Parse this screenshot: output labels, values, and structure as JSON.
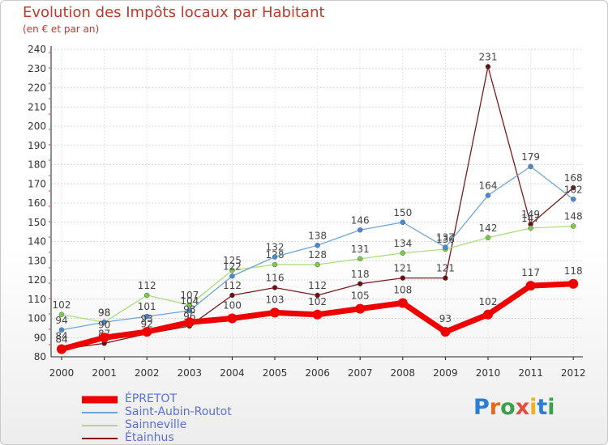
{
  "title": "Evolution des Impôts locaux par Habitant",
  "subtitle": "(en € et par an)",
  "logo": {
    "text": "Proxiti",
    "colors": [
      "#2a7fd4",
      "#e36a1a",
      "#3aa14a",
      "#e84c3d",
      "#f2b01e",
      "#2a7fd4",
      "#3aa14a"
    ]
  },
  "chart_data": {
    "type": "line",
    "title": "Evolution des Impôts locaux par Habitant",
    "subtitle": "(en € et par an)",
    "xlabel": "",
    "ylabel": "",
    "categories": [
      "2000",
      "2001",
      "2002",
      "2003",
      "2004",
      "2005",
      "2006",
      "2007",
      "2008",
      "2009",
      "2010",
      "2011",
      "2012"
    ],
    "ylim": [
      80,
      240
    ],
    "yticks": [
      80,
      90,
      100,
      110,
      120,
      130,
      140,
      150,
      160,
      170,
      180,
      190,
      200,
      210,
      220,
      230,
      240
    ],
    "grid": true,
    "legend_position": "bottom-left",
    "series": [
      {
        "name": "Étainhus",
        "color": "#7a1a1a",
        "marker": "#6b0f0f",
        "values": [
          84,
          87,
          92,
          96,
          112,
          116,
          112,
          118,
          121,
          121,
          231,
          149,
          168
        ],
        "labels": [
          "84",
          "87",
          "92",
          "96",
          "112",
          "116",
          "112",
          "118",
          "121",
          "121",
          "231",
          "149",
          "168"
        ]
      },
      {
        "name": "Sainneville",
        "color": "#a7e07a",
        "marker": "#7dcb4b",
        "values": [
          102,
          98,
          112,
          107,
          125,
          128,
          128,
          131,
          134,
          136,
          142,
          147,
          148
        ],
        "labels": [
          "102",
          "98",
          "112",
          "107",
          "125",
          "128",
          "128",
          "131",
          "134",
          "136",
          "142",
          "147",
          "148"
        ]
      },
      {
        "name": "Saint-Aubin-Routot",
        "color": "#6ea5d8",
        "marker": "#4a8ad0",
        "values": [
          94,
          98,
          101,
          104,
          122,
          132,
          138,
          146,
          150,
          137,
          164,
          179,
          162
        ],
        "labels": [
          "94",
          "98",
          "101",
          "104",
          "122",
          "132",
          "138",
          "146",
          "150",
          "137",
          "164",
          "179",
          "162"
        ]
      },
      {
        "name": "ÉPRETOT",
        "color": "#ee0000",
        "marker": "#ee0000",
        "values": [
          84,
          90,
          93,
          98,
          100,
          103,
          102,
          105,
          108,
          93,
          102,
          117,
          118
        ],
        "labels": [
          "84",
          "90",
          "93",
          "98",
          "100",
          "103",
          "102",
          "105",
          "108",
          "93",
          "102",
          "117",
          "118"
        ]
      }
    ]
  },
  "legend": [
    {
      "label": "ÉPRETOT",
      "color": "#ee0000",
      "thick": true
    },
    {
      "label": "Saint-Aubin-Routot",
      "color": "#6ea5d8",
      "thick": false
    },
    {
      "label": "Sainneville",
      "color": "#a7e07a",
      "thick": false
    },
    {
      "label": "Étainhus",
      "color": "#7a1a1a",
      "thick": false
    }
  ]
}
